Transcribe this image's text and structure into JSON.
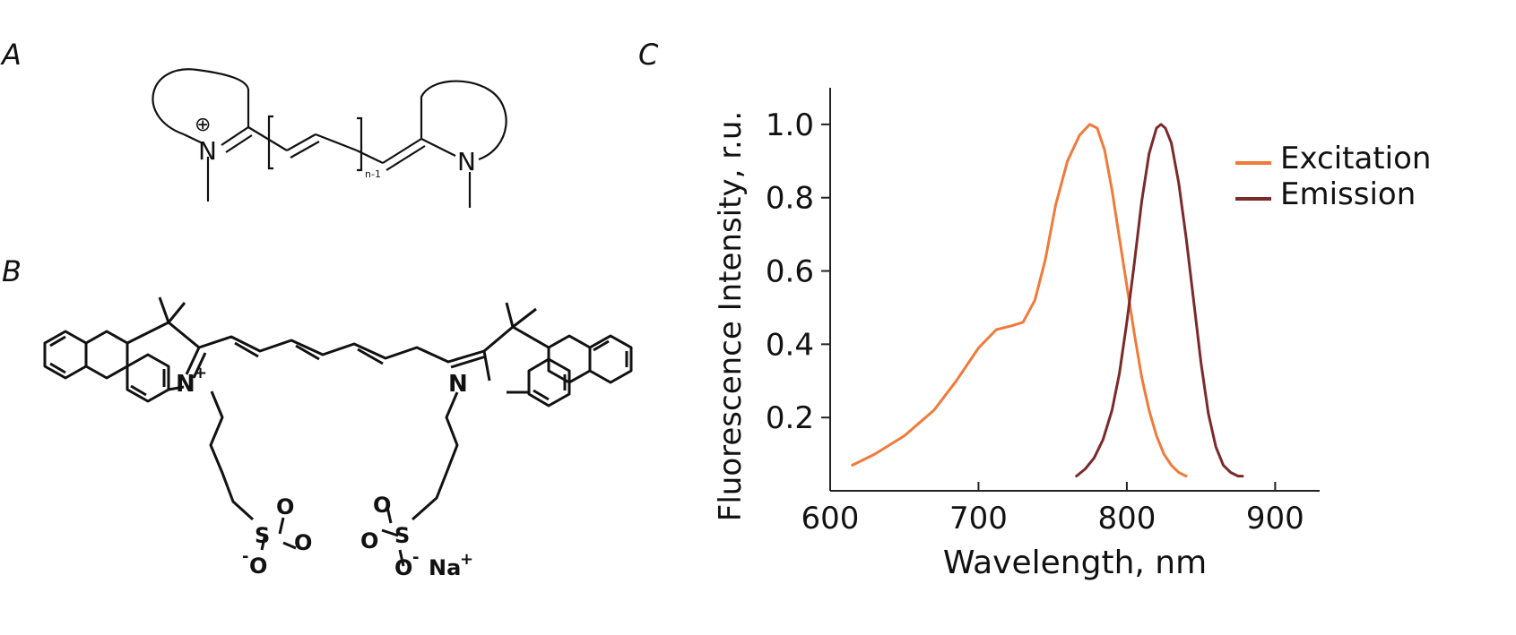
{
  "panels": {
    "a": "A",
    "b": "B",
    "c": "C"
  },
  "structure_a": {
    "plus": "⊕",
    "n_left": "N",
    "n_right": "N",
    "subscript": "n-1"
  },
  "structure_b": {
    "n_left": "N",
    "n_left_charge": "+",
    "n_right": "N",
    "o1": "O",
    "o2": "O",
    "o3": "O",
    "s1": "S",
    "o4": "O",
    "o5": "O",
    "o6": "O",
    "s2": "S",
    "minus": "-",
    "na": "Na",
    "na_charge": "+"
  },
  "chart_data": {
    "type": "line",
    "xlabel": "Wavelength, nm",
    "ylabel": "Fluorescence Intensity, r.u.",
    "xlim": [
      600,
      930
    ],
    "ylim": [
      0,
      1.1
    ],
    "x_ticks": [
      600,
      700,
      800,
      900
    ],
    "y_ticks": [
      0.2,
      0.4,
      0.6,
      0.8,
      1.0
    ],
    "y_tick_labels": [
      "0.2",
      "0.4",
      "0.6",
      "0.8",
      "1.0"
    ],
    "legend_position": "top-right",
    "series": [
      {
        "name": "Excitation",
        "color": "#f07a3a",
        "x": [
          615,
          630,
          650,
          670,
          685,
          700,
          712,
          722,
          730,
          738,
          745,
          752,
          760,
          768,
          775,
          780,
          785,
          790,
          795,
          800,
          805,
          810,
          815,
          820,
          825,
          830,
          835,
          840
        ],
        "y": [
          0.07,
          0.1,
          0.15,
          0.22,
          0.3,
          0.39,
          0.44,
          0.45,
          0.46,
          0.52,
          0.63,
          0.78,
          0.9,
          0.97,
          1.0,
          0.99,
          0.93,
          0.82,
          0.69,
          0.56,
          0.43,
          0.31,
          0.22,
          0.15,
          0.1,
          0.07,
          0.05,
          0.04
        ]
      },
      {
        "name": "Emission",
        "color": "#7b2a2a",
        "x": [
          766,
          772,
          778,
          784,
          790,
          795,
          800,
          805,
          810,
          815,
          820,
          823,
          826,
          830,
          835,
          840,
          845,
          850,
          855,
          860,
          865,
          870,
          875,
          878
        ],
        "y": [
          0.04,
          0.06,
          0.09,
          0.14,
          0.22,
          0.32,
          0.46,
          0.62,
          0.79,
          0.92,
          0.99,
          1.0,
          0.99,
          0.95,
          0.84,
          0.69,
          0.52,
          0.35,
          0.21,
          0.12,
          0.07,
          0.05,
          0.04,
          0.04
        ]
      }
    ]
  }
}
